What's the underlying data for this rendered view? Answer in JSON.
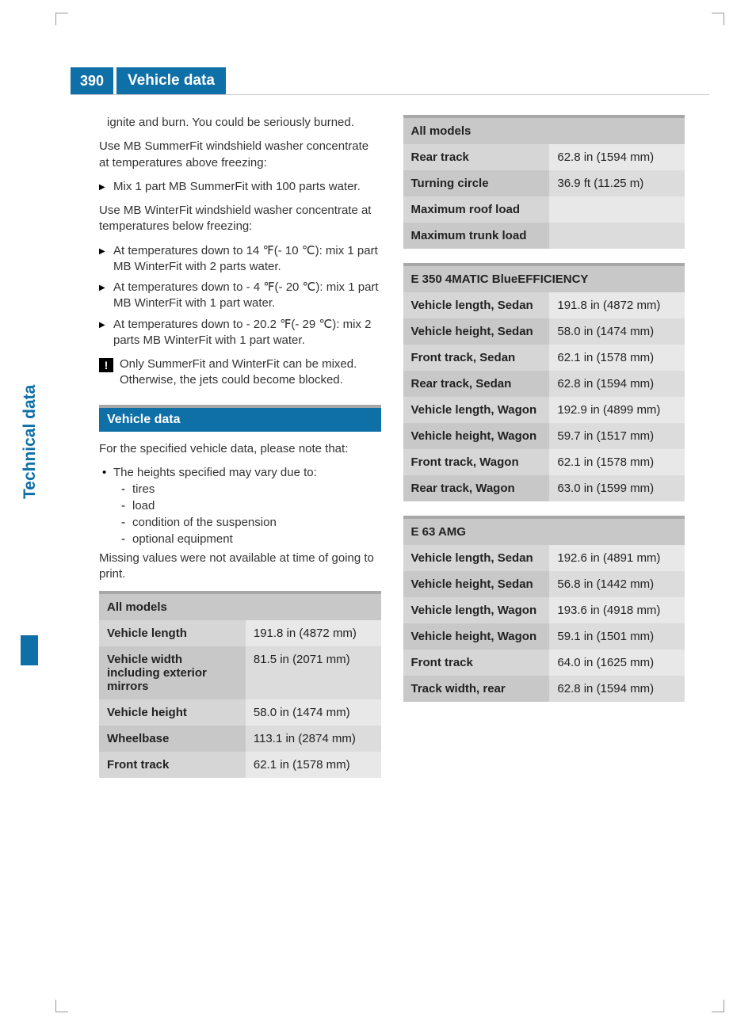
{
  "colors": {
    "brand": "#0f6fa7",
    "header_grey": "#a8a8a8",
    "row_lab_odd": "#d6d6d6",
    "row_lab_even": "#c8c8c8",
    "row_val_odd": "#e8e8e8",
    "row_val_even": "#dcdcdc",
    "text": "#333333"
  },
  "typography": {
    "body_fontsize": 15,
    "title_fontsize": 19,
    "side_tab_fontsize": 21
  },
  "header": {
    "page_number": "390",
    "page_title": "Vehicle data"
  },
  "side_tab": "Technical data",
  "left": {
    "continuation": "ignite and burn. You could be seriously burned.",
    "summerfit_intro": "Use MB SummerFit windshield washer concentrate at temperatures above freezing:",
    "summerfit_bullets": [
      "Mix 1 part MB SummerFit with 100 parts water."
    ],
    "winterfit_intro": "Use MB WinterFit windshield washer concentrate at temperatures below freezing:",
    "winterfit_bullets": [
      "At temperatures down to 14 ℉(- 10 ℃): mix 1 part MB WinterFit with 2 parts water.",
      "At temperatures down to - 4 ℉(- 20 ℃): mix 1 part MB WinterFit with 1 part water.",
      "At temperatures down to - 20.2 ℉(- 29 ℃): mix 2 parts MB WinterFit with 1 part water."
    ],
    "note": "Only SummerFit and WinterFit can be mixed. Otherwise, the jets could become blocked.",
    "section_title": "Vehicle data",
    "note2_intro": "For the specified vehicle data, please note that:",
    "heights_intro": "The heights specified may vary due to:",
    "heights_list": [
      "tires",
      "load",
      "condition of the suspension",
      "optional equipment"
    ],
    "missing": "Missing values were not available at time of going to print."
  },
  "tables": {
    "all_models_1": {
      "title": "All models",
      "rows": [
        {
          "label": "Vehicle length",
          "value": "191.8 in (4872 mm)"
        },
        {
          "label": "Vehicle width including exterior mirrors",
          "value": "81.5 in (2071 mm)"
        },
        {
          "label": "Vehicle height",
          "value": "58.0 in (1474 mm)"
        },
        {
          "label": "Wheelbase",
          "value": "113.1 in (2874 mm)"
        },
        {
          "label": "Front track",
          "value": "62.1 in (1578 mm)"
        }
      ]
    },
    "all_models_2": {
      "title": "All models",
      "rows": [
        {
          "label": "Rear track",
          "value": "62.8 in (1594 mm)"
        },
        {
          "label": "Turning circle",
          "value": "36.9 ft (11.25 m)"
        },
        {
          "label": "Maximum roof load",
          "value": ""
        },
        {
          "label": "Maximum trunk load",
          "value": ""
        }
      ]
    },
    "e350": {
      "title": "E 350 4MATIC BlueEFFICIENCY",
      "rows": [
        {
          "label": "Vehicle length, Sedan",
          "value": "191.8 in (4872 mm)"
        },
        {
          "label": "Vehicle height, Sedan",
          "value": "58.0 in (1474 mm)"
        },
        {
          "label": "Front track, Sedan",
          "value": "62.1 in (1578 mm)"
        },
        {
          "label": "Rear track, Sedan",
          "value": "62.8 in (1594 mm)"
        },
        {
          "label": "Vehicle length, Wagon",
          "value": "192.9 in (4899 mm)"
        },
        {
          "label": "Vehicle height, Wagon",
          "value": "59.7 in (1517 mm)"
        },
        {
          "label": "Front track, Wagon",
          "value": "62.1 in (1578 mm)"
        },
        {
          "label": "Rear track, Wagon",
          "value": "63.0 in (1599 mm)"
        }
      ]
    },
    "e63": {
      "title": "E 63 AMG",
      "rows": [
        {
          "label": "Vehicle length, Sedan",
          "value": "192.6 in (4891 mm)"
        },
        {
          "label": "Vehicle height, Sedan",
          "value": "56.8 in (1442 mm)"
        },
        {
          "label": "Vehicle length, Wagon",
          "value": "193.6 in (4918 mm)"
        },
        {
          "label": "Vehicle height, Wagon",
          "value": "59.1 in (1501 mm)"
        },
        {
          "label": "Front track",
          "value": "64.0 in (1625 mm)"
        },
        {
          "label": "Track width, rear",
          "value": "62.8 in (1594 mm)"
        }
      ]
    }
  }
}
